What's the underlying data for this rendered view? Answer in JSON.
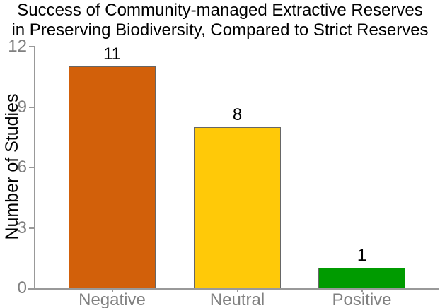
{
  "title_lines": [
    "Success of Community-managed Extractive Reserves",
    "in Preserving Biodiversity, Compared to Strict Reserves"
  ],
  "chart_data": {
    "type": "bar",
    "title": "Success of Community-managed Extractive Reserves in Preserving Biodiversity, Compared to Strict Reserves",
    "categories": [
      "Negative",
      "Neutral",
      "Positive"
    ],
    "values": [
      11,
      8,
      1
    ],
    "value_labels": [
      "11",
      "8",
      "1"
    ],
    "series": [
      {
        "name": "Number of Studies",
        "values": [
          11,
          8,
          1
        ]
      }
    ],
    "bar_colors": [
      "#d2600a",
      "#ffc908",
      "#009b00"
    ],
    "bar_edge_color": "#666666",
    "xlabel": "",
    "ylabel": "Number of Studies",
    "yticks": [
      0,
      3,
      6,
      9,
      12
    ],
    "ylim": [
      0,
      12
    ],
    "grid": false,
    "legend": "none",
    "axis_color": "#999999",
    "tick_label_color": "#808080",
    "title_color": "#000000",
    "value_label_color": "#000000",
    "background_color": "#ffffff"
  }
}
